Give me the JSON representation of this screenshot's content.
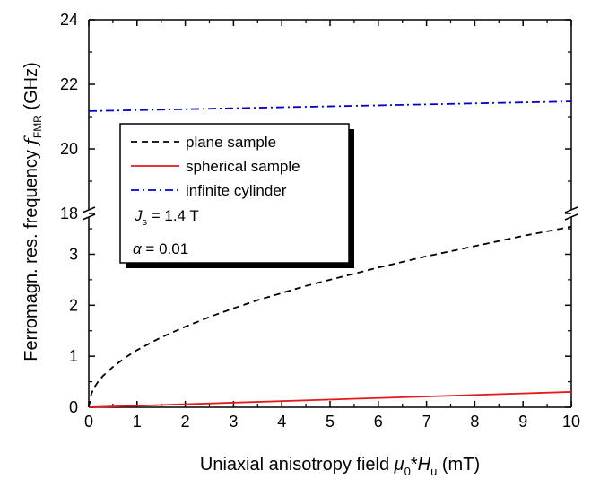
{
  "chart_data": {
    "type": "line",
    "xlabel": {
      "prefix": "Uniaxial anisotropy field ",
      "symbol": "μ",
      "symbol_sub": "0",
      "mid": "*",
      "symbol2": "H",
      "symbol2_sub": "u",
      "suffix": " (mT)"
    },
    "ylabel": {
      "prefix": "Ferromagn. res. frequency ",
      "symbol": "f",
      "symbol_sub": "FMR",
      "suffix": " (GHz)"
    },
    "xlim": [
      0,
      10
    ],
    "xticks": [
      "0",
      "1",
      "2",
      "3",
      "4",
      "5",
      "6",
      "7",
      "8",
      "9",
      "10"
    ],
    "y_axis_break": true,
    "ylim_lower": [
      0,
      3.8
    ],
    "ylim_upper": [
      18,
      24
    ],
    "yticks_lower": [
      "0",
      "1",
      "2",
      "3"
    ],
    "yticks_upper": [
      "18",
      "20",
      "22",
      "24"
    ],
    "series": [
      {
        "name": "plane sample",
        "style": "dashed",
        "color": "#000000",
        "x": [
          0,
          0.05,
          0.1,
          0.2,
          0.3,
          0.5,
          0.75,
          1,
          1.5,
          2,
          2.5,
          3,
          3.5,
          4,
          4.5,
          5,
          5.5,
          6,
          6.5,
          7,
          7.5,
          8,
          8.5,
          9,
          9.5,
          10
        ],
        "y": [
          0.0,
          0.25,
          0.37,
          0.51,
          0.62,
          0.79,
          0.97,
          1.12,
          1.37,
          1.58,
          1.77,
          1.94,
          2.1,
          2.24,
          2.38,
          2.5,
          2.62,
          2.74,
          2.85,
          2.96,
          3.06,
          3.16,
          3.26,
          3.36,
          3.45,
          3.54
        ]
      },
      {
        "name": "spherical sample",
        "style": "solid",
        "color": "#e41a1c",
        "x": [
          0,
          10
        ],
        "y": [
          0.0,
          0.3
        ]
      },
      {
        "name": "infinite cylinder",
        "style": "dashdot",
        "color": "#0000cc",
        "x": [
          0,
          10
        ],
        "y": [
          21.17,
          21.47
        ]
      }
    ],
    "legend_placement": "upper-left",
    "annotations": [
      {
        "symbol": "J",
        "sub": "s",
        "text": " = 1.4 T"
      },
      {
        "symbol": "α",
        "sub": "",
        "text": " = 0.01"
      }
    ]
  }
}
